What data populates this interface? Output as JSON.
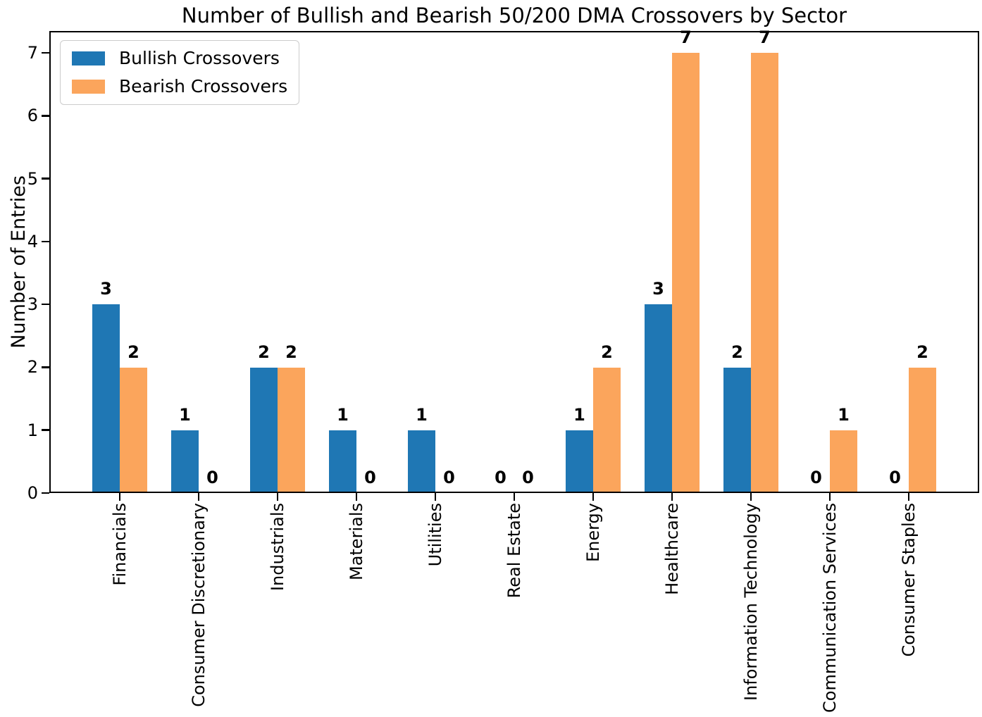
{
  "chart_data": {
    "type": "bar",
    "title": "Number of Bullish and Bearish 50/200 DMA Crossovers by Sector",
    "xlabel": "",
    "ylabel": "Number of Entries",
    "categories": [
      "Financials",
      "Consumer Discretionary",
      "Industrials",
      "Materials",
      "Utilities",
      "Real Estate",
      "Energy",
      "Healthcare",
      "Information Technology",
      "Communication Services",
      "Consumer Staples"
    ],
    "series": [
      {
        "name": "Bullish Crossovers",
        "color": "#1f77b4",
        "values": [
          3,
          1,
          2,
          1,
          1,
          0,
          1,
          3,
          2,
          0,
          0
        ]
      },
      {
        "name": "Bearish Crossovers",
        "color": "#fba55c",
        "values": [
          2,
          0,
          2,
          0,
          0,
          0,
          2,
          7,
          7,
          1,
          2
        ]
      }
    ],
    "yticks": [
      0,
      1,
      2,
      3,
      4,
      5,
      6,
      7
    ],
    "ylim": [
      0,
      7.35
    ],
    "grid": false,
    "bar_value_labels": true,
    "bar_value_label_weight": "bold",
    "xtick_rotation": 90,
    "legend_position": "upper left",
    "text_color": "#000000",
    "spine_color": "#000000",
    "background_color": "#ffffff"
  }
}
